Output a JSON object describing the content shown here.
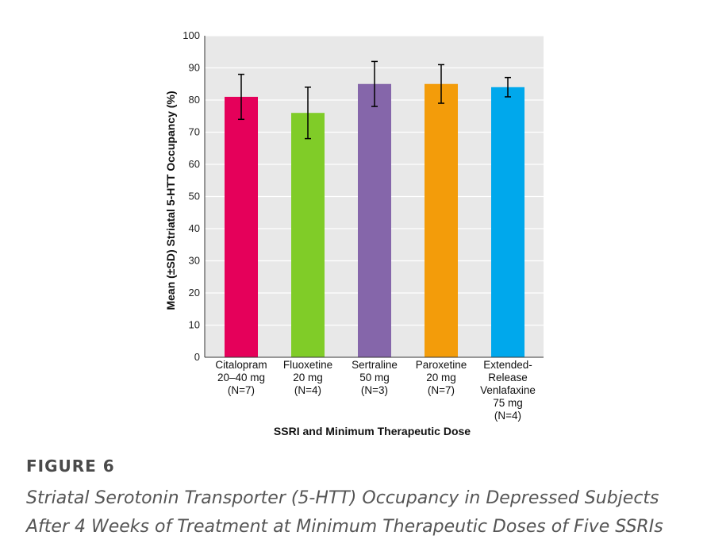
{
  "chart_data": {
    "type": "bar",
    "categories": [
      [
        "Citalopram",
        "20–40 mg",
        "(N=7)"
      ],
      [
        "Fluoxetine",
        "20 mg",
        "(N=4)"
      ],
      [
        "Sertraline",
        "50 mg",
        "(N=3)"
      ],
      [
        "Paroxetine",
        "20 mg",
        "(N=7)"
      ],
      [
        "Extended-",
        "Release",
        "Venlafaxine",
        "75 mg",
        "(N=4)"
      ]
    ],
    "values": [
      81,
      76,
      85,
      85,
      84
    ],
    "error": [
      7,
      8,
      7,
      6,
      3
    ],
    "colors": [
      "#e5005a",
      "#80cc28",
      "#8566aa",
      "#f39c0a",
      "#00a8ec"
    ],
    "xlabel": "SSRI and Minimum Therapeutic Dose",
    "ylabel": "Mean (±SD) Striatal 5-HTT Occupancy (%)",
    "ylim": [
      0,
      100
    ],
    "yticks": [
      0,
      10,
      20,
      30,
      40,
      50,
      60,
      70,
      80,
      90,
      100
    ],
    "grid": true,
    "plot_background": "#e8e8e8"
  },
  "figure": {
    "label": "FIGURE 6",
    "caption_lines": [
      "Striatal Serotonin Transporter (5-HTT) Occupancy in Depressed Subjects",
      "After 4 Weeks of Treatment at Minimum Therapeutic Doses of Five SSRIs"
    ]
  }
}
